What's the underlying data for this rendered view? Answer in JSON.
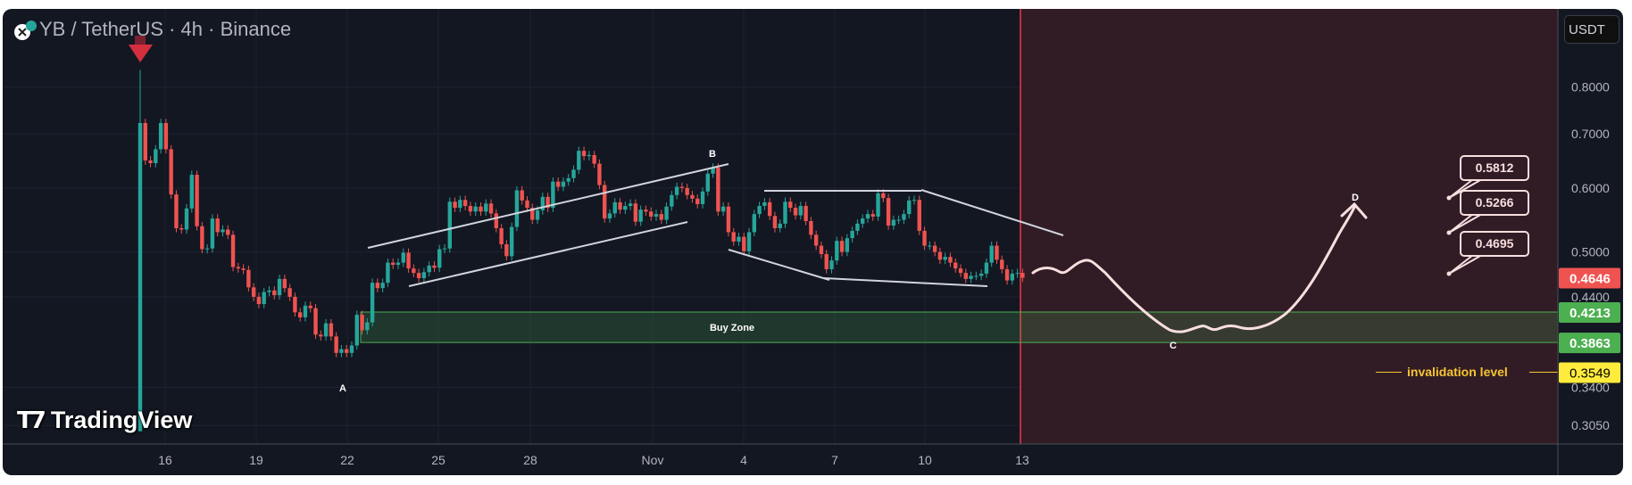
{
  "header": {
    "title": "YB / TetherUS · 4h · Binance"
  },
  "currency_button": "USDT",
  "watermark": "TradingView",
  "annotations": {
    "buy_zone": "Buy Zone",
    "invalidation": "invalidation level",
    "point_a": "A",
    "point_b": "B",
    "point_c": "C",
    "point_d": "D",
    "targets": [
      "0.5812",
      "0.5266",
      "0.4695"
    ]
  },
  "colors": {
    "up": "#26a69a",
    "down": "#ef5350",
    "background": "#131722",
    "projection_zone": "#311c26",
    "buy_zone": "#4caf50",
    "invalidation": "#ffeb3b"
  },
  "chart_data": {
    "type": "candlestick",
    "title": "YB / TetherUS · 4h · Binance",
    "interval": "4h",
    "x_ticks": [
      "16",
      "19",
      "22",
      "25",
      "28",
      "Nov",
      "4",
      "7",
      "10",
      "13"
    ],
    "y_ticks": [
      "0.8000",
      "0.7000",
      "0.6000",
      "0.5000",
      "0.4400",
      "0.3400",
      "0.3050"
    ],
    "y_scale": "log",
    "ylim": [
      0.29,
      0.92
    ],
    "first_candle": {
      "open": 0.3,
      "high": 0.84,
      "low": 0.3,
      "close": 0.722
    },
    "closes": [
      0.722,
      0.649,
      0.644,
      0.67,
      0.722,
      0.67,
      0.589,
      0.535,
      0.533,
      0.566,
      0.623,
      0.538,
      0.504,
      0.505,
      0.55,
      0.529,
      0.533,
      0.525,
      0.479,
      0.477,
      0.475,
      0.452,
      0.44,
      0.431,
      0.446,
      0.448,
      0.442,
      0.463,
      0.451,
      0.44,
      0.421,
      0.415,
      0.429,
      0.426,
      0.395,
      0.393,
      0.408,
      0.393,
      0.375,
      0.379,
      0.375,
      0.383,
      0.418,
      0.4,
      0.409,
      0.458,
      0.451,
      0.458,
      0.485,
      0.482,
      0.485,
      0.499,
      0.477,
      0.471,
      0.464,
      0.472,
      0.481,
      0.478,
      0.504,
      0.505,
      0.577,
      0.567,
      0.58,
      0.57,
      0.561,
      0.569,
      0.561,
      0.574,
      0.558,
      0.535,
      0.511,
      0.494,
      0.537,
      0.596,
      0.579,
      0.567,
      0.548,
      0.563,
      0.585,
      0.567,
      0.611,
      0.602,
      0.611,
      0.617,
      0.632,
      0.667,
      0.657,
      0.659,
      0.643,
      0.605,
      0.55,
      0.558,
      0.576,
      0.564,
      0.57,
      0.574,
      0.545,
      0.564,
      0.561,
      0.553,
      0.557,
      0.548,
      0.569,
      0.588,
      0.602,
      0.6,
      0.588,
      0.582,
      0.573,
      0.594,
      0.625,
      0.636,
      0.561,
      0.569,
      0.529,
      0.515,
      0.522,
      0.501,
      0.529,
      0.557,
      0.57,
      0.576,
      0.554,
      0.535,
      0.542,
      0.577,
      0.567,
      0.555,
      0.57,
      0.546,
      0.525,
      0.509,
      0.497,
      0.476,
      0.488,
      0.516,
      0.5,
      0.52,
      0.531,
      0.542,
      0.55,
      0.557,
      0.553,
      0.591,
      0.583,
      0.539,
      0.548,
      0.548,
      0.557,
      0.579,
      0.58,
      0.531,
      0.509,
      0.509,
      0.5,
      0.489,
      0.493,
      0.485,
      0.477,
      0.471,
      0.463,
      0.467,
      0.467,
      0.47,
      0.485,
      0.509,
      0.489,
      0.476,
      0.461,
      0.47,
      0.471,
      0.4646
    ],
    "price_labels": [
      {
        "label": "0.4646",
        "value": 0.4646,
        "kind": "last"
      },
      {
        "label": "0.4213",
        "value": 0.4213,
        "kind": "buy-zone-top"
      },
      {
        "label": "0.3863",
        "value": 0.3863,
        "kind": "buy-zone-bottom"
      },
      {
        "label": "0.3549",
        "value": 0.3549,
        "kind": "invalidation"
      }
    ],
    "buy_zone": [
      0.3863,
      0.4213
    ],
    "invalidation_level": 0.3549
  }
}
